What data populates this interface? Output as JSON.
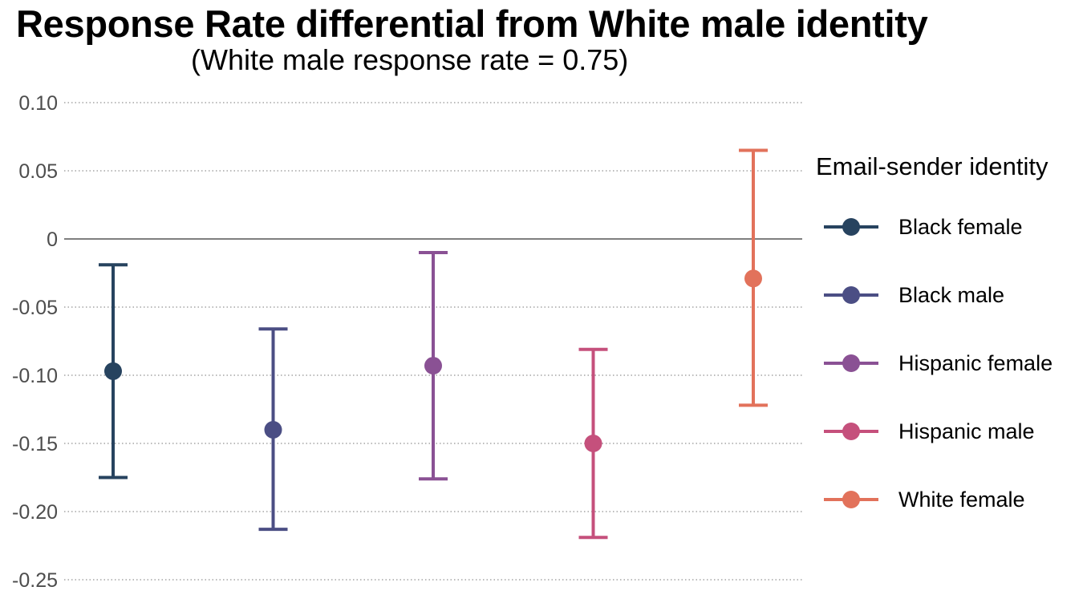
{
  "chart_data": {
    "type": "errorbar",
    "title": "Response Rate differential from White male identity",
    "subtitle": "(White male response rate = 0.75)",
    "ylim": [
      -0.25,
      0.1
    ],
    "y_ticks": [
      "0.10",
      "0.05",
      "0",
      "-0.05",
      "-0.10",
      "-0.15",
      "-0.20",
      "-0.25"
    ],
    "y_tick_values": [
      0.1,
      0.05,
      0,
      -0.05,
      -0.1,
      -0.15,
      -0.2,
      -0.25
    ],
    "grid": "horizontal dotted",
    "reference_line": 0,
    "legend": {
      "title": "Email-sender identity",
      "placement": "right"
    },
    "series": [
      {
        "name": "Black female",
        "value": -0.097,
        "lower": -0.175,
        "upper": -0.019,
        "color": "#27435f"
      },
      {
        "name": "Black male",
        "value": -0.14,
        "lower": -0.213,
        "upper": -0.066,
        "color": "#4b4e84"
      },
      {
        "name": "Hispanic female",
        "value": -0.093,
        "lower": -0.176,
        "upper": -0.01,
        "color": "#8a5194"
      },
      {
        "name": "Hispanic male",
        "value": -0.15,
        "lower": -0.219,
        "upper": -0.081,
        "color": "#c5507c"
      },
      {
        "name": "White female",
        "value": -0.029,
        "lower": -0.122,
        "upper": 0.065,
        "color": "#e2725b"
      }
    ]
  }
}
